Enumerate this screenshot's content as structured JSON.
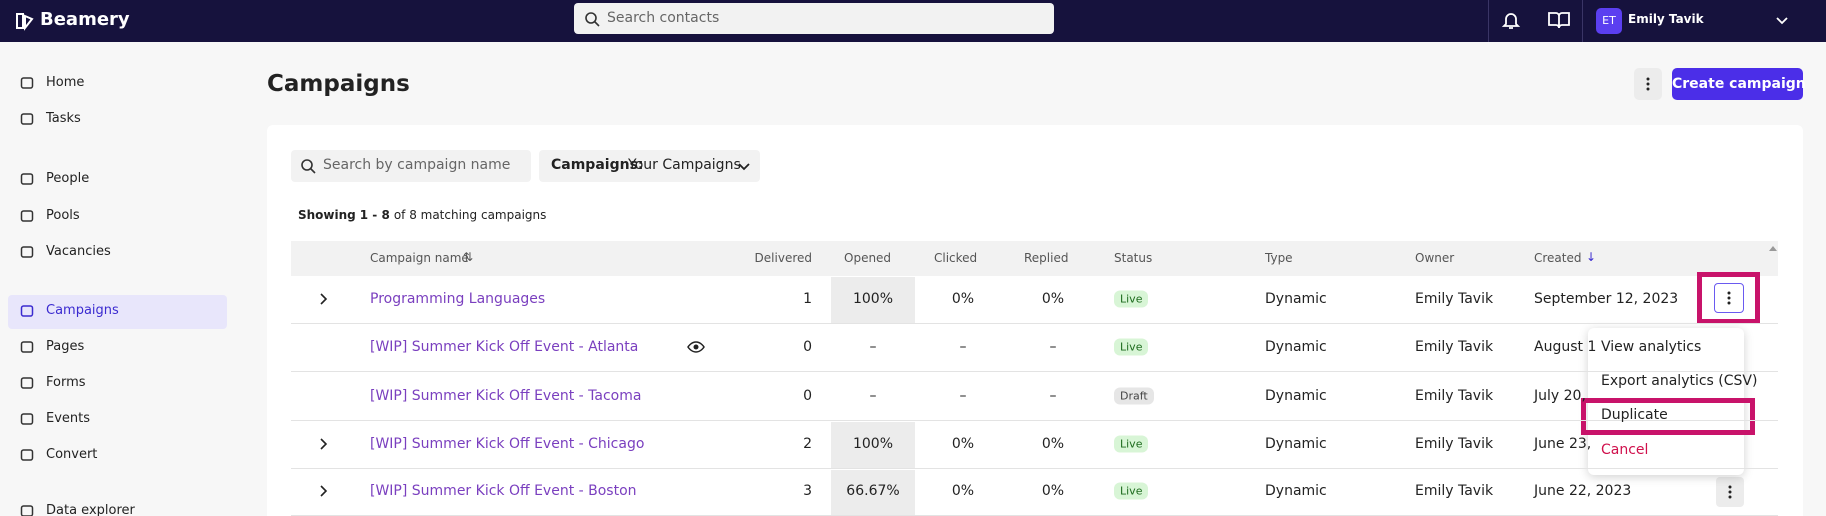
{
  "topbar": {
    "logo": "Beamery",
    "search_placeholder": "Search contacts",
    "avatar": "ET",
    "user": "Emily Tavik"
  },
  "sidebar": {
    "items": [
      "Home",
      "Tasks",
      "People",
      "Pools",
      "Vacancies",
      "Campaigns",
      "Pages",
      "Forms",
      "Events",
      "Convert",
      "Data explorer"
    ],
    "active": "Campaigns"
  },
  "header": {
    "title": "Campaigns",
    "create_button": "Create campaign"
  },
  "filters": {
    "search_placeholder": "Search by campaign name",
    "dropdown_label": "Campaigns:",
    "dropdown_value": "Your Campaigns"
  },
  "summary": {
    "prefix": "Showing",
    "range": "1 - 8",
    "suffix": "of 8 matching campaigns"
  },
  "table": {
    "columns": [
      "Campaign name",
      "Delivered",
      "Opened",
      "Clicked",
      "Replied",
      "Status",
      "Type",
      "Owner",
      "Created"
    ],
    "rows": [
      [
        "Programming Languages",
        "1",
        "100%",
        "0%",
        "0%",
        "Live",
        "Dynamic",
        "Emily Tavik",
        "September 12, 2023"
      ],
      [
        "[WIP] Summer Kick Off Event - Atlanta",
        "0",
        "–",
        "–",
        "–",
        "Live",
        "Dynamic",
        "Emily Tavik",
        "August 1"
      ],
      [
        "[WIP] Summer Kick Off Event - Tacoma",
        "0",
        "–",
        "–",
        "–",
        "Draft",
        "Dynamic",
        "Emily Tavik",
        "July 20,"
      ],
      [
        "[WIP] Summer Kick Off Event - Chicago",
        "2",
        "100%",
        "0%",
        "0%",
        "Live",
        "Dynamic",
        "Emily Tavik",
        "June 23,"
      ],
      [
        "[WIP] Summer Kick Off Event - Boston",
        "3",
        "66.67%",
        "0%",
        "0%",
        "Live",
        "Dynamic",
        "Emily Tavik",
        "June 22, 2023"
      ]
    ]
  },
  "menu": {
    "items": [
      "View analytics",
      "Export analytics (CSV)",
      "Duplicate",
      "Cancel"
    ]
  }
}
